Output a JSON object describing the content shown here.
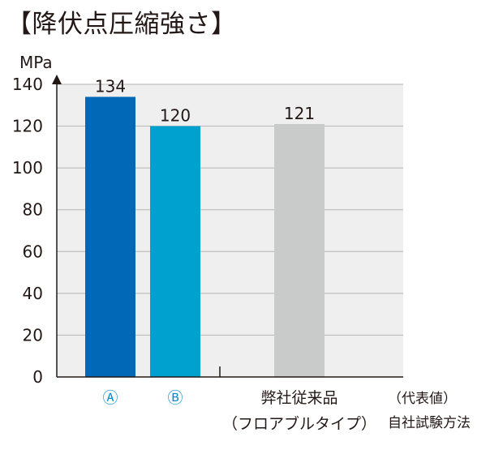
{
  "title": "【降伏点圧縮強さ】",
  "chart_data": {
    "type": "bar",
    "title": "【降伏点圧縮強さ】",
    "ylabel": "MPa",
    "xlabel": "",
    "ylim": [
      0,
      140
    ],
    "yticks": [
      0,
      20,
      40,
      60,
      80,
      100,
      120,
      140
    ],
    "grid": true,
    "categories": [
      "Ⓐ",
      "Ⓑ",
      "弊社従来品（フロアブルタイプ）"
    ],
    "category_lines": [
      [
        "Ⓐ"
      ],
      [
        "Ⓑ"
      ],
      [
        "弊社従来品",
        "（フロアブルタイプ）"
      ]
    ],
    "values": [
      134,
      120,
      121
    ],
    "data_labels": [
      "134",
      "120",
      "121"
    ],
    "colors": [
      "#0068b6",
      "#00a0cf",
      "#c9caca"
    ],
    "category_label_colors": [
      "#0a8ccb",
      "#0a8ccb",
      "#231815"
    ],
    "note_lines": [
      "（代表値）",
      "自社試験方法"
    ]
  },
  "colors": {
    "plot_background": "#efefef",
    "grid": "#b5b5b5",
    "axis": "#231815",
    "text": "#231815"
  }
}
